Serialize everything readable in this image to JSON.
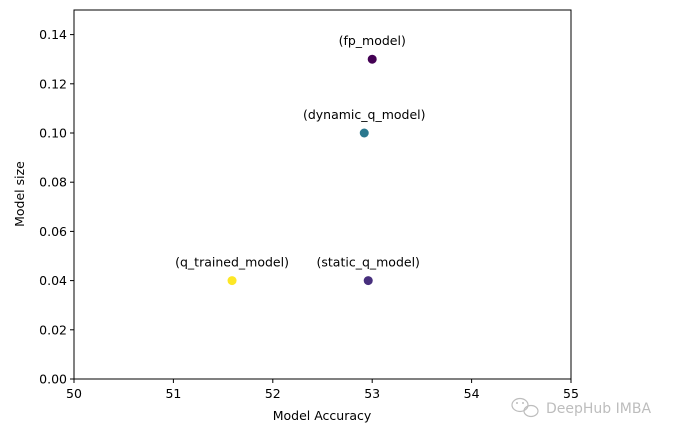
{
  "chart_data": {
    "type": "scatter",
    "title": "",
    "xlabel": "Model Accuracy",
    "ylabel": "Model size",
    "xlim": [
      50,
      55
    ],
    "ylim": [
      0,
      0.15
    ],
    "xticks": [
      50,
      51,
      52,
      53,
      54,
      55
    ],
    "yticks": [
      0.0,
      0.02,
      0.04,
      0.06,
      0.08,
      0.1,
      0.12,
      0.14
    ],
    "xtick_labels": [
      "50",
      "51",
      "52",
      "53",
      "54",
      "55"
    ],
    "ytick_labels": [
      "0.00",
      "0.02",
      "0.04",
      "0.06",
      "0.08",
      "0.10",
      "0.12",
      "0.14"
    ],
    "grid": false,
    "legend": "none",
    "points": [
      {
        "x": 53.0,
        "y": 0.13,
        "label": "(fp_model)",
        "color": "#440154"
      },
      {
        "x": 52.92,
        "y": 0.1,
        "label": "(dynamic_q_model)",
        "color": "#2a788e"
      },
      {
        "x": 52.96,
        "y": 0.04,
        "label": "(static_q_model)",
        "color": "#472f7d"
      },
      {
        "x": 51.59,
        "y": 0.04,
        "label": "(q_trained_model)",
        "color": "#fde725"
      }
    ]
  },
  "watermark": {
    "text": "DeepHub IMBA",
    "icon": "wechat-icon"
  }
}
